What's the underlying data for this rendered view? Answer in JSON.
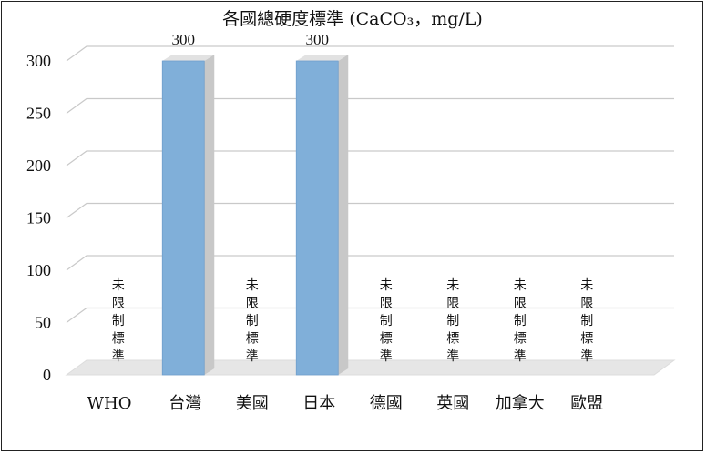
{
  "chart_data": {
    "type": "bar",
    "title": "各國總硬度標準 (CaCO₃，mg/L)",
    "categories": [
      "WHO",
      "台灣",
      "美國",
      "日本",
      "德國",
      "英國",
      "加拿大",
      "歐盟"
    ],
    "values": [
      null,
      300,
      null,
      300,
      null,
      null,
      null,
      null
    ],
    "data_labels": [
      "未限制標準",
      "300",
      "未限制標準",
      "300",
      "未限制標準",
      "未限制標準",
      "未限制標準",
      "未限制標準"
    ],
    "ylim": [
      0,
      300
    ],
    "yticks": [
      0,
      50,
      100,
      150,
      200,
      250,
      300
    ],
    "grid": true,
    "legend": "none",
    "colors": {
      "bar_front": "#80afd9",
      "bar_side": "#c8c8c8",
      "bar_top": "#e2e2e2",
      "grid": "#c9c9c9",
      "floor": "#e6e6e6"
    }
  }
}
